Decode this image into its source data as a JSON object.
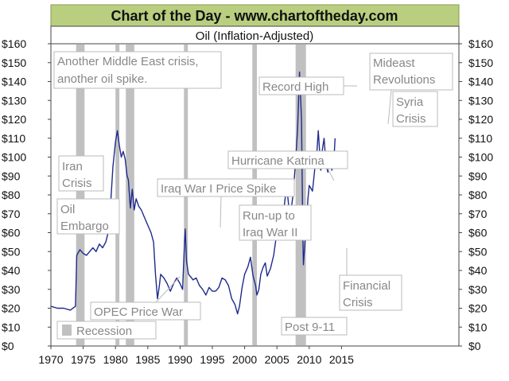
{
  "header": {
    "title": "Chart of the Day - www.chartoftheday.com",
    "subtitle": "Oil (Inflation-Adjusted)"
  },
  "colors": {
    "header_bg": "#b9cf7f",
    "series": "#1f2a8c",
    "recession": "#c0c0c0",
    "annotation_text": "#888888",
    "axis": "#444444"
  },
  "chart_data": {
    "type": "line",
    "title": "Oil (Inflation-Adjusted)",
    "xlabel": "",
    "ylabel": "",
    "xlim": [
      1970,
      2019
    ],
    "ylim": [
      0,
      160
    ],
    "x_ticks": [
      1970,
      1975,
      1980,
      1985,
      1990,
      1995,
      2000,
      2005,
      2010,
      2015
    ],
    "y_ticks": [
      0,
      10,
      20,
      30,
      40,
      50,
      60,
      70,
      80,
      90,
      100,
      110,
      120,
      130,
      140,
      150,
      160
    ],
    "y_tick_labels": [
      "$0",
      "$10",
      "$20",
      "$30",
      "$40",
      "$50",
      "$60",
      "$70",
      "$80",
      "$90",
      "$100",
      "$110",
      "$120",
      "$130",
      "$140",
      "$150",
      "$160"
    ],
    "recessions": [
      [
        1973.9,
        1975.2
      ],
      [
        1980.0,
        1980.6
      ],
      [
        1981.6,
        1982.9
      ],
      [
        1990.6,
        1991.2
      ],
      [
        2001.2,
        2001.9
      ],
      [
        2007.9,
        2009.5
      ]
    ],
    "legend": {
      "label": "Recession",
      "placement": "bottom-left"
    },
    "series": [
      {
        "name": "Oil (Inflation-Adjusted)",
        "points": [
          [
            1970.0,
            21
          ],
          [
            1971.0,
            20
          ],
          [
            1972.0,
            20
          ],
          [
            1973.0,
            19
          ],
          [
            1973.8,
            21
          ],
          [
            1974.0,
            48
          ],
          [
            1974.5,
            51
          ],
          [
            1975.0,
            49
          ],
          [
            1975.5,
            48
          ],
          [
            1976.0,
            50
          ],
          [
            1976.5,
            52
          ],
          [
            1977.0,
            50
          ],
          [
            1977.5,
            54
          ],
          [
            1978.0,
            52
          ],
          [
            1978.5,
            55
          ],
          [
            1979.0,
            62
          ],
          [
            1979.3,
            78
          ],
          [
            1979.6,
            95
          ],
          [
            1980.0,
            108
          ],
          [
            1980.3,
            114
          ],
          [
            1980.6,
            106
          ],
          [
            1980.9,
            100
          ],
          [
            1981.2,
            103
          ],
          [
            1981.5,
            99
          ],
          [
            1981.8,
            90
          ],
          [
            1982.0,
            88
          ],
          [
            1982.3,
            73
          ],
          [
            1982.6,
            83
          ],
          [
            1982.9,
            72
          ],
          [
            1983.2,
            78
          ],
          [
            1983.6,
            74
          ],
          [
            1984.0,
            72
          ],
          [
            1984.5,
            68
          ],
          [
            1985.0,
            64
          ],
          [
            1985.5,
            60
          ],
          [
            1985.9,
            55
          ],
          [
            1986.2,
            38
          ],
          [
            1986.5,
            25
          ],
          [
            1986.8,
            32
          ],
          [
            1987.0,
            38
          ],
          [
            1987.5,
            36
          ],
          [
            1988.0,
            33
          ],
          [
            1988.5,
            29
          ],
          [
            1989.0,
            33
          ],
          [
            1989.5,
            36
          ],
          [
            1990.0,
            33
          ],
          [
            1990.4,
            30
          ],
          [
            1990.7,
            56
          ],
          [
            1990.8,
            62
          ],
          [
            1991.0,
            45
          ],
          [
            1991.3,
            38
          ],
          [
            1991.8,
            36
          ],
          [
            1992.0,
            35
          ],
          [
            1992.5,
            36
          ],
          [
            1993.0,
            32
          ],
          [
            1993.5,
            30
          ],
          [
            1994.0,
            27
          ],
          [
            1994.5,
            31
          ],
          [
            1995.0,
            29
          ],
          [
            1995.5,
            29
          ],
          [
            1996.0,
            31
          ],
          [
            1996.5,
            36
          ],
          [
            1997.0,
            35
          ],
          [
            1997.5,
            32
          ],
          [
            1998.0,
            25
          ],
          [
            1998.5,
            22
          ],
          [
            1998.9,
            17
          ],
          [
            1999.2,
            21
          ],
          [
            1999.6,
            31
          ],
          [
            2000.0,
            38
          ],
          [
            2000.5,
            42
          ],
          [
            2000.9,
            47
          ],
          [
            2001.3,
            37
          ],
          [
            2001.7,
            32
          ],
          [
            2001.9,
            27
          ],
          [
            2002.2,
            30
          ],
          [
            2002.5,
            38
          ],
          [
            2002.9,
            42
          ],
          [
            2003.2,
            44
          ],
          [
            2003.5,
            37
          ],
          [
            2004.0,
            41
          ],
          [
            2004.5,
            48
          ],
          [
            2004.9,
            58
          ],
          [
            2005.3,
            60
          ],
          [
            2005.7,
            74
          ],
          [
            2006.0,
            70
          ],
          [
            2006.5,
            85
          ],
          [
            2006.8,
            75
          ],
          [
            2007.0,
            67
          ],
          [
            2007.5,
            80
          ],
          [
            2007.9,
            98
          ],
          [
            2008.2,
            115
          ],
          [
            2008.5,
            145
          ],
          [
            2008.8,
            120
          ],
          [
            2009.0,
            60
          ],
          [
            2009.1,
            43
          ],
          [
            2009.5,
            62
          ],
          [
            2009.8,
            78
          ],
          [
            2010.0,
            85
          ],
          [
            2010.5,
            82
          ],
          [
            2010.9,
            95
          ],
          [
            2011.2,
            103
          ],
          [
            2011.4,
            114
          ],
          [
            2011.8,
            93
          ],
          [
            2012.0,
            103
          ],
          [
            2012.3,
            110
          ],
          [
            2012.6,
            96
          ],
          [
            2012.9,
            92
          ],
          [
            2013.2,
            100
          ],
          [
            2013.5,
            93
          ],
          [
            2013.8,
            97
          ],
          [
            2014.0,
            110
          ]
        ]
      }
    ],
    "annotations": [
      {
        "lines": [
          "Another Middle East crisis,",
          "another oil spike."
        ]
      },
      {
        "lines": [
          "Iran",
          "Crisis"
        ]
      },
      {
        "lines": [
          "Oil",
          "Embargo"
        ]
      },
      {
        "lines": [
          "Iraq War I Price Spike"
        ]
      },
      {
        "lines": [
          "OPEC Price War"
        ]
      },
      {
        "lines": [
          "Record High"
        ]
      },
      {
        "lines": [
          "Hurricane Katrina"
        ]
      },
      {
        "lines": [
          "Run-up to",
          "Iraq War II"
        ]
      },
      {
        "lines": [
          "Post 9-11"
        ]
      },
      {
        "lines": [
          "Mideast",
          "Revolutions"
        ]
      },
      {
        "lines": [
          "Syria",
          "Crisis"
        ]
      },
      {
        "lines": [
          "Financial",
          "Crisis"
        ]
      }
    ]
  }
}
